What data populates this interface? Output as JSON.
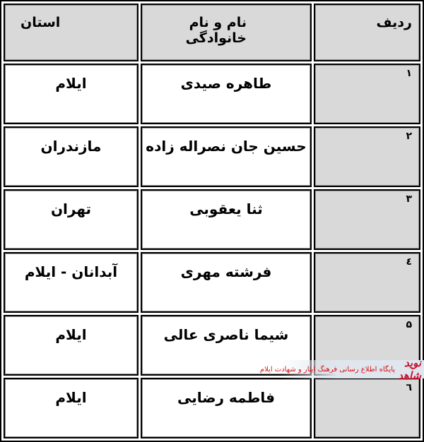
{
  "headers": {
    "row_number": "ردیف",
    "full_name": "نام و نام خانوادگی",
    "province": "استان"
  },
  "rows": [
    {
      "num": "۱",
      "name": "طاهره صیدی",
      "province": "ایلام"
    },
    {
      "num": "۲",
      "name": "حسین جان نصراله زاده",
      "province": "مازندران"
    },
    {
      "num": "۳",
      "name": "ثنا یعقوبی",
      "province": "تهران"
    },
    {
      "num": "٤",
      "name": "فرشته مهری",
      "province": "آبدانان - ایلام"
    },
    {
      "num": "۵",
      "name": "شیما ناصری عالی",
      "province": "ایلام"
    },
    {
      "num": "٦",
      "name": "فاطمه رضایی",
      "province": "ایلام"
    }
  ],
  "watermark": {
    "logo": "نوید شاهد",
    "text": "پایگاه اطلاع رسانی فرهنگ ایثار و شهادت ایلام"
  },
  "colors": {
    "header_bg": "#d9d9d9",
    "watermark_red": "#c8102e"
  }
}
